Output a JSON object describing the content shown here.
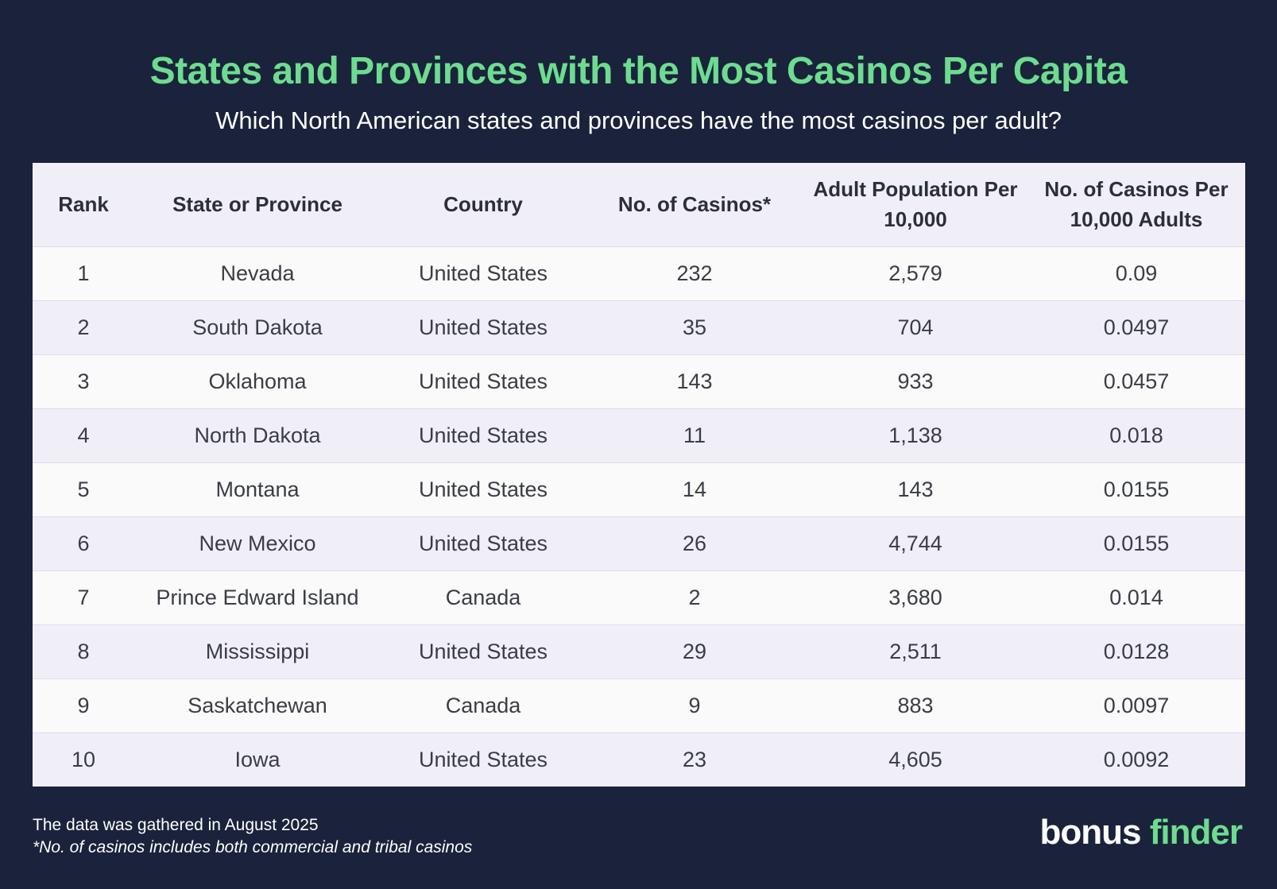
{
  "header": {
    "title": "States and Provinces with the Most Casinos Per Capita",
    "subtitle": "Which North American states and provinces have the most casinos per adult?"
  },
  "chart_data": {
    "type": "table",
    "columns": [
      "Rank",
      "State or Province",
      "Country",
      "No. of Casinos*",
      "Adult Population Per 10,000",
      "No. of Casinos Per 10,000 Adults"
    ],
    "rows": [
      [
        "1",
        "Nevada",
        "United States",
        "232",
        "2,579",
        "0.09"
      ],
      [
        "2",
        "South Dakota",
        "United States",
        "35",
        "704",
        "0.0497"
      ],
      [
        "3",
        "Oklahoma",
        "United States",
        "143",
        "933",
        "0.0457"
      ],
      [
        "4",
        "North Dakota",
        "United States",
        "11",
        "1,138",
        "0.018"
      ],
      [
        "5",
        "Montana",
        "United States",
        "14",
        "143",
        "0.0155"
      ],
      [
        "6",
        "New Mexico",
        "United States",
        "26",
        "4,744",
        "0.0155"
      ],
      [
        "7",
        "Prince Edward Island",
        "Canada",
        "2",
        "3,680",
        "0.014"
      ],
      [
        "8",
        "Mississippi",
        "United States",
        "29",
        "2,511",
        "0.0128"
      ],
      [
        "9",
        "Saskatchewan",
        "Canada",
        "9",
        "883",
        "0.0097"
      ],
      [
        "10",
        "Iowa",
        "United States",
        "23",
        "4,605",
        "0.0092"
      ]
    ]
  },
  "footer": {
    "note": "The data was gathered in August 2025",
    "footnote": "*No. of casinos includes both commercial and tribal casinos",
    "logo_part1": "bonus",
    "logo_part2": "finder"
  },
  "colors": {
    "background": "#1a233b",
    "accent": "#6ddc8f",
    "header_row": "#f0eff8",
    "row_light": "#fafafa",
    "row_alt": "#f0eff8"
  }
}
